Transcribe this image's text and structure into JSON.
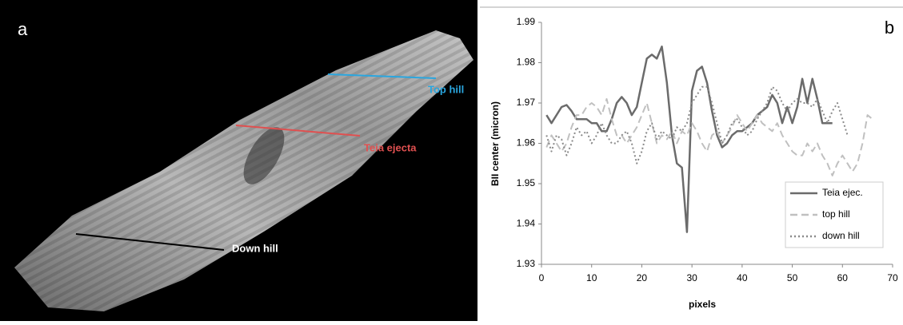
{
  "image_panel": {
    "panel_label": "a",
    "annotations": [
      "Top hill",
      "Teia ejecta",
      "Down hill"
    ]
  },
  "chart_data": {
    "type": "line",
    "panel_label": "b",
    "xlabel": "pixels",
    "ylabel": "BII center (micron)",
    "x": [
      1,
      2,
      3,
      4,
      5,
      6,
      7,
      8,
      9,
      10,
      11,
      12,
      13,
      14,
      15,
      16,
      17,
      18,
      19,
      20,
      21,
      22,
      23,
      24,
      25,
      26,
      27,
      28,
      29,
      30,
      31,
      32,
      33,
      34,
      35,
      36,
      37,
      38,
      39,
      40,
      41,
      42,
      43,
      44,
      45,
      46,
      47,
      48,
      49,
      50,
      51,
      52,
      53,
      54,
      55,
      56,
      57,
      58,
      59,
      60,
      61,
      62,
      63,
      64,
      65,
      66
    ],
    "series": [
      {
        "name": "Teia ejec.",
        "color": "#6b6b6b",
        "values": [
          1.967,
          1.965,
          1.967,
          1.969,
          1.9695,
          1.968,
          1.966,
          1.966,
          1.966,
          1.965,
          1.965,
          1.963,
          1.963,
          1.966,
          1.97,
          1.9715,
          1.97,
          1.967,
          1.969,
          1.975,
          1.981,
          1.982,
          1.981,
          1.984,
          1.975,
          1.962,
          1.955,
          1.954,
          1.938,
          1.973,
          1.978,
          1.979,
          1.975,
          1.968,
          1.962,
          1.959,
          1.96,
          1.962,
          1.963,
          1.963,
          1.964,
          1.965,
          1.967,
          1.968,
          1.969,
          1.972,
          1.97,
          1.965,
          1.969,
          1.965,
          1.969,
          1.976,
          1.97,
          1.976,
          1.971,
          1.965,
          1.965,
          1.965,
          null,
          null,
          null,
          null,
          null,
          null,
          null,
          null
        ]
      },
      {
        "name": "top hill",
        "color": "#c0c0c0",
        "values": [
          1.959,
          1.962,
          1.96,
          1.958,
          1.96,
          1.964,
          1.967,
          1.967,
          1.969,
          1.97,
          1.969,
          1.967,
          1.971,
          1.966,
          1.962,
          1.962,
          1.96,
          1.962,
          1.964,
          1.967,
          1.97,
          1.965,
          1.96,
          1.962,
          1.961,
          1.963,
          1.96,
          1.963,
          1.962,
          1.965,
          1.963,
          1.96,
          1.958,
          1.962,
          1.963,
          1.96,
          1.962,
          1.964,
          1.967,
          1.965,
          1.963,
          1.965,
          1.967,
          1.965,
          1.964,
          1.963,
          1.965,
          1.962,
          1.96,
          1.958,
          1.957,
          1.957,
          1.96,
          1.958,
          1.96,
          1.957,
          1.955,
          1.952,
          1.955,
          1.957,
          1.955,
          1.953,
          1.955,
          1.96,
          1.967,
          1.966
        ]
      },
      {
        "name": "down hill",
        "color": "#8a8a8a",
        "values": [
          1.962,
          1.958,
          1.962,
          1.961,
          1.957,
          1.96,
          1.964,
          1.962,
          1.963,
          1.96,
          1.962,
          1.965,
          1.962,
          1.96,
          1.96,
          1.962,
          1.963,
          1.96,
          1.955,
          1.958,
          1.963,
          1.965,
          1.961,
          1.963,
          1.962,
          1.961,
          1.964,
          1.963,
          1.965,
          1.97,
          1.972,
          1.974,
          1.974,
          1.97,
          1.965,
          1.96,
          1.962,
          1.965,
          1.966,
          1.964,
          1.962,
          1.963,
          1.966,
          1.968,
          1.97,
          1.974,
          1.973,
          1.97,
          1.968,
          1.97,
          1.971,
          1.97,
          1.97,
          1.969,
          1.971,
          1.968,
          1.965,
          1.968,
          1.97,
          1.966,
          1.962,
          null,
          null,
          null,
          null,
          null
        ]
      }
    ],
    "dash": [
      "none",
      "9,5",
      "2,3"
    ],
    "xlim": [
      0,
      70
    ],
    "xticks": [
      0,
      10,
      20,
      30,
      40,
      50,
      60,
      70
    ],
    "ylim": [
      1.93,
      1.99
    ],
    "yticks": [
      1.93,
      1.94,
      1.95,
      1.96,
      1.97,
      1.98,
      1.99
    ],
    "grid": false,
    "legend": "lower right"
  }
}
